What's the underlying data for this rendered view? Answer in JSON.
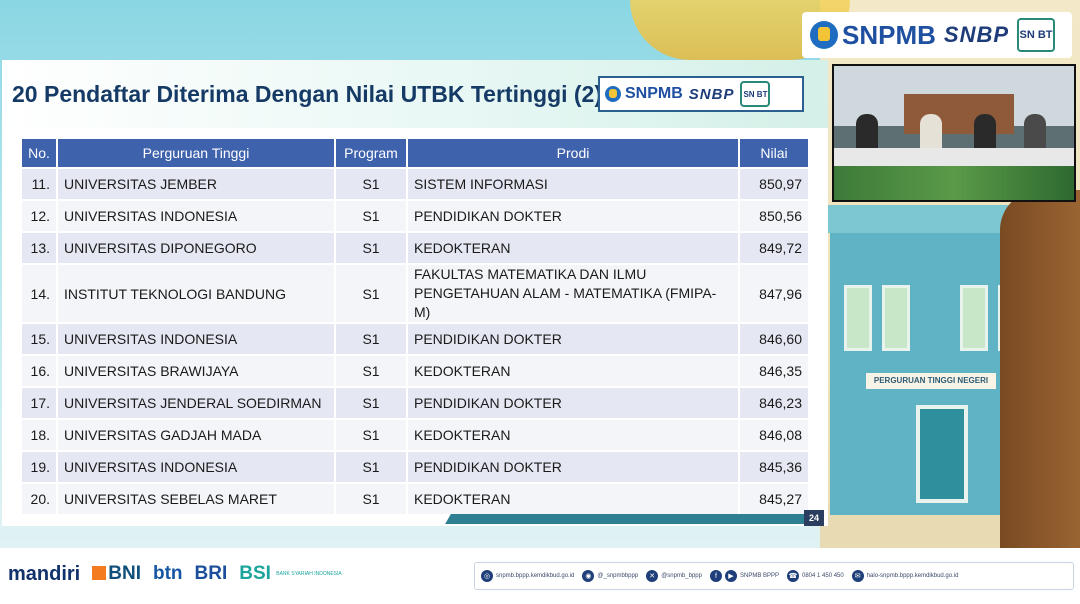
{
  "slide": {
    "title": "20 Pendaftar Diterima Dengan Nilai UTBK Tertinggi (2)",
    "page_number": "24"
  },
  "brand": {
    "snpmb": "SNPMB",
    "snbp": "SNBP",
    "snbt": "SN BT"
  },
  "table": {
    "headers": [
      "No.",
      "Perguruan Tinggi",
      "Program",
      "Prodi",
      "Nilai"
    ],
    "rows": [
      {
        "no": "11.",
        "pt": "UNIVERSITAS JEMBER",
        "program": "S1",
        "prodi": "SISTEM INFORMASI",
        "nilai": "850,97"
      },
      {
        "no": "12.",
        "pt": "UNIVERSITAS INDONESIA",
        "program": "S1",
        "prodi": "PENDIDIKAN DOKTER",
        "nilai": "850,56"
      },
      {
        "no": "13.",
        "pt": "UNIVERSITAS DIPONEGORO",
        "program": "S1",
        "prodi": "KEDOKTERAN",
        "nilai": "849,72"
      },
      {
        "no": "14.",
        "pt": "INSTITUT TEKNOLOGI BANDUNG",
        "program": "S1",
        "prodi_line1": "FAKULTAS MATEMATIKA DAN ILMU",
        "prodi_line2": "PENGETAHUAN ALAM - MATEMATIKA (FMIPA-M)",
        "nilai": "847,96"
      },
      {
        "no": "15.",
        "pt": "UNIVERSITAS INDONESIA",
        "program": "S1",
        "prodi": "PENDIDIKAN DOKTER",
        "nilai": "846,60"
      },
      {
        "no": "16.",
        "pt": "UNIVERSITAS BRAWIJAYA",
        "program": "S1",
        "prodi": "KEDOKTERAN",
        "nilai": "846,35"
      },
      {
        "no": "17.",
        "pt": "UNIVERSITAS JENDERAL SOEDIRMAN",
        "program": "S1",
        "prodi": "PENDIDIKAN DOKTER",
        "nilai": "846,23"
      },
      {
        "no": "18.",
        "pt": "UNIVERSITAS GADJAH MADA",
        "program": "S1",
        "prodi": "KEDOKTERAN",
        "nilai": "846,08"
      },
      {
        "no": "19.",
        "pt": "UNIVERSITAS INDONESIA",
        "program": "S1",
        "prodi": "PENDIDIKAN DOKTER",
        "nilai": "845,36"
      },
      {
        "no": "20.",
        "pt": "UNIVERSITAS SEBELAS MARET",
        "program": "S1",
        "prodi": "KEDOKTERAN",
        "nilai": "845,27"
      }
    ]
  },
  "building_sign": "PERGURUAN TINGGI NEGERI",
  "sponsors": {
    "mandiri": "mandiri",
    "bni": "BNI",
    "btn": "btn",
    "bri": "BRI",
    "bsi": "BSI",
    "bsi_sub": "BANK SYARIAH INDONESIA"
  },
  "contacts": [
    {
      "icon": "globe-icon",
      "glyph": "◎",
      "text": "snpmb.bppp.kemdikbud.go.id"
    },
    {
      "icon": "instagram-icon",
      "glyph": "◉",
      "text": "@_snpmbbppp"
    },
    {
      "icon": "x-icon",
      "glyph": "✕",
      "text": "@snpmb_bppp"
    },
    {
      "icon": "facebook-icon",
      "glyph": "f",
      "text": ""
    },
    {
      "icon": "youtube-icon",
      "glyph": "▶",
      "text": "SNPMB BPPP"
    },
    {
      "icon": "phone-icon",
      "glyph": "☎",
      "text": "0804 1 450 450"
    },
    {
      "icon": "mail-icon",
      "glyph": "✉",
      "text": "halo-snpmb.bppp.kemdikbud.go.id"
    }
  ],
  "colors": {
    "header_blue": "#3f62ad",
    "title_navy": "#163a66",
    "row_odd": "#e5e8f3",
    "row_even": "#f4f5f9"
  }
}
